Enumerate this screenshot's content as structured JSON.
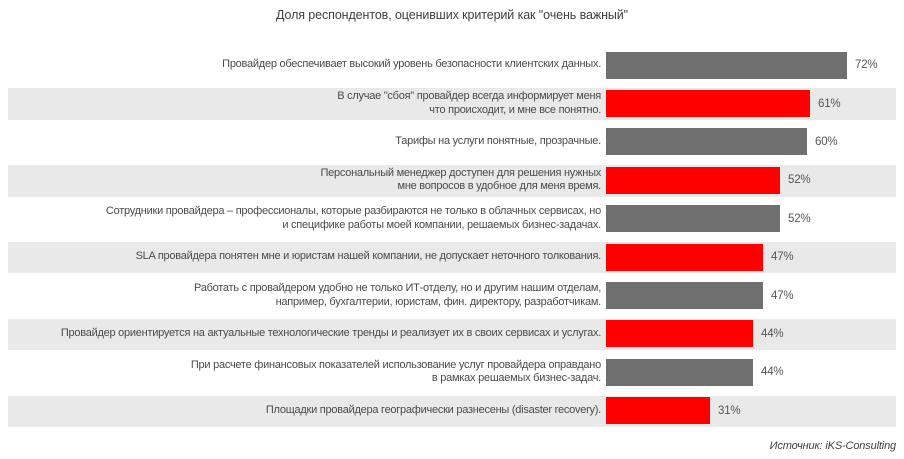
{
  "title": "Доля респондентов, оценивших критерий как \"очень важный\"",
  "source": "Источник: iKS-Consulting",
  "colors": {
    "bar_gray": "#6F6F6F",
    "bar_red": "#FF0000",
    "row_stripe": "#E9E9E9",
    "text": "#4a4a4a"
  },
  "chart_data": {
    "type": "bar",
    "orientation": "horizontal",
    "title": "Доля респондентов, оценивших критерий как \"очень важный\"",
    "xlabel": "",
    "ylabel": "",
    "xlim": [
      0,
      100
    ],
    "grid": false,
    "legend": false,
    "value_suffix": "%",
    "source": "Источник: iKS-Consulting",
    "categories": [
      "Провайдер обеспечивает высокий уровень безопасности клиентских данных.",
      "В случае \"сбоя\" провайдер всегда информирует меня что происходит, и мне все понятно.",
      "Тарифы на услуги понятные, прозрачные.",
      "Персональный менеджер доступен для решения нужных мне вопросов в удобное для меня время.",
      "Сотрудники провайдера – профессионалы, которые разбираются не только в облачных сервисах, но и специфике работы моей компании, решаемых бизнес-задачах.",
      "SLA провайдера понятен мне и юристам нашей компании, не допускает неточного толкования.",
      "Работать с провайдером удобно не только ИТ-отделу, но и другим нашим отделам, например, бухгалтерии, юристам, фин. директору, разработчикам.",
      "Провайдер ориентируется на актуальные технологические тренды и реализует их в своих сервисах и услугах.",
      "При расчете финансовых показателей использование услуг провайдера оправдано в рамках решаемых бизнес-задач.",
      "Площадки провайдера географически разнесены (disaster recovery)."
    ],
    "label_lines": [
      [
        "Провайдер обеспечивает высокий уровень безопасности клиентских данных."
      ],
      [
        "В случае \"сбоя\" провайдер всегда информирует меня",
        "что происходит, и мне все понятно."
      ],
      [
        "Тарифы на услуги понятные, прозрачные."
      ],
      [
        "Персональный менеджер доступен для решения нужных",
        "мне вопросов в удобное для меня время."
      ],
      [
        "Сотрудники провайдера – профессионалы, которые разбираются не только в облачных сервисах, но",
        "и специфике работы моей компании, решаемых бизнес-задачах."
      ],
      [
        "SLA провайдера понятен мне и юристам нашей компании, не допускает неточного толкования."
      ],
      [
        "Работать с провайдером удобно не только ИТ-отделу, но и другим нашим отделам,",
        "например, бухгалтерии, юристам, фин. директору, разработчикам."
      ],
      [
        "Провайдер ориентируется на актуальные технологические тренды и реализует их в своих сервисах и услугах."
      ],
      [
        "При расчете финансовых показателей использование услуг провайдера оправдано",
        "в рамках решаемых бизнес-задач."
      ],
      [
        "Площадки провайдера географически разнесены (disaster recovery)."
      ]
    ],
    "values": [
      72,
      61,
      60,
      52,
      52,
      47,
      47,
      44,
      44,
      31
    ],
    "bar_colors": [
      "#6F6F6F",
      "#FF0000",
      "#6F6F6F",
      "#FF0000",
      "#6F6F6F",
      "#FF0000",
      "#6F6F6F",
      "#FF0000",
      "#6F6F6F",
      "#FF0000"
    ]
  }
}
